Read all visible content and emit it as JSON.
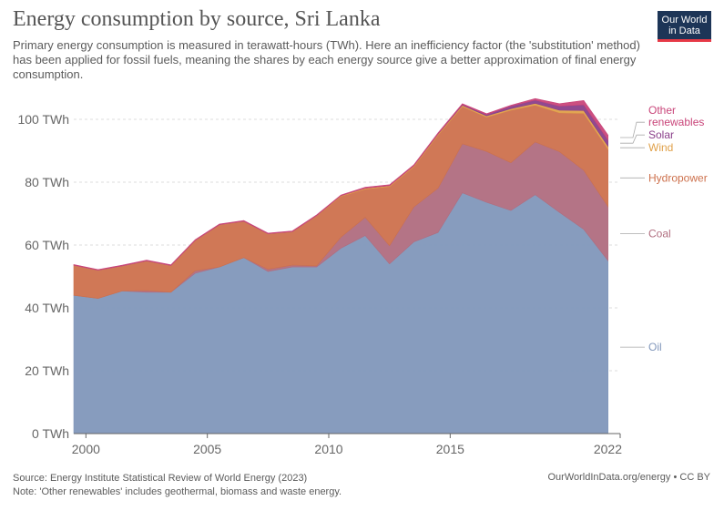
{
  "header": {
    "title": "Energy consumption by source, Sri Lanka",
    "subtitle": "Primary energy consumption is measured in terawatt-hours (TWh). Here an inefficiency factor (the 'substitution' method) has been applied for fossil fuels, meaning the shares by each energy source give a better approximation of final energy consumption.",
    "logo_line1": "Our World",
    "logo_line2": "in Data"
  },
  "footer": {
    "source": "Source: Energy Institute Statistical Review of World Energy (2023)",
    "note": "Note: 'Other renewables' includes geothermal, biomass and waste energy.",
    "credit": "OurWorldInData.org/energy • CC BY"
  },
  "colors": {
    "oil": "#8197bb",
    "coal": "#b06d7f",
    "hydropower": "#cd714d",
    "wind": "#e0a14a",
    "solar": "#8a3f8a",
    "other_renewables": "#c9467a",
    "grid": "#dddddd",
    "axis": "#666666",
    "label_text": "#666666"
  },
  "chart_data": {
    "type": "area",
    "stacked": true,
    "title": "Energy consumption by source, Sri Lanka",
    "ylabel": "TWh",
    "ylim": [
      0,
      100
    ],
    "xlim": [
      1999.5,
      2022
    ],
    "y_ticks": [
      {
        "value": 0,
        "label": "0 TWh"
      },
      {
        "value": 20,
        "label": "20 TWh"
      },
      {
        "value": 40,
        "label": "40 TWh"
      },
      {
        "value": 60,
        "label": "60 TWh"
      },
      {
        "value": 80,
        "label": "80 TWh"
      },
      {
        "value": 100,
        "label": "100 TWh"
      }
    ],
    "x_ticks": [
      {
        "value": 2000,
        "label": "2000"
      },
      {
        "value": 2005,
        "label": "2005"
      },
      {
        "value": 2010,
        "label": "2010"
      },
      {
        "value": 2015,
        "label": "2015"
      },
      {
        "value": 2022,
        "label": "2022"
      }
    ],
    "x": [
      1999.5,
      2000.5,
      2001.5,
      2002.5,
      2003.5,
      2004.5,
      2005.5,
      2006.5,
      2007.5,
      2008.5,
      2009.5,
      2010.5,
      2011.5,
      2012.5,
      2013.5,
      2014.5,
      2015.5,
      2016.5,
      2017.5,
      2018.5,
      2019.5,
      2020.5,
      2021.5
    ],
    "series": [
      {
        "key": "oil",
        "name": "Oil",
        "values": [
          44,
          43,
          45.4,
          45,
          45,
          51,
          53,
          56,
          51.6,
          53,
          53,
          59,
          63,
          54,
          61,
          64,
          76.6,
          73.6,
          71,
          76,
          70.4,
          65,
          55
        ]
      },
      {
        "key": "coal",
        "name": "Coal",
        "values": [
          0,
          0,
          0,
          0.5,
          0,
          0.8,
          0,
          0,
          0.7,
          0.6,
          0.4,
          3.5,
          5.8,
          5.8,
          11.1,
          14.1,
          15.6,
          16.2,
          15.2,
          16.8,
          19.3,
          18.8,
          17.2
        ]
      },
      {
        "key": "hydropower",
        "name": "Hydropower",
        "values": [
          9.6,
          9,
          8,
          9.5,
          8.5,
          9.7,
          13.5,
          11.6,
          11.3,
          10.7,
          15.9,
          13,
          9,
          18.8,
          12.8,
          16.9,
          11.9,
          10.9,
          16.7,
          11.7,
          12.4,
          18.1,
          18.3
        ]
      },
      {
        "key": "wind",
        "name": "Wind",
        "values": [
          0,
          0,
          0,
          0,
          0,
          0,
          0,
          0,
          0,
          0,
          0.1,
          0.2,
          0.3,
          0.3,
          0.3,
          0.3,
          0.4,
          0.4,
          0.5,
          0.6,
          0.8,
          0.9,
          0.9
        ]
      },
      {
        "key": "solar",
        "name": "Solar",
        "values": [
          0,
          0,
          0,
          0,
          0,
          0,
          0,
          0,
          0,
          0,
          0,
          0,
          0,
          0,
          0,
          0.1,
          0.2,
          0.4,
          0.8,
          1,
          1.3,
          1.8,
          2
        ]
      },
      {
        "key": "other_renewables",
        "name": "Other renewables",
        "values": [
          0.2,
          0.2,
          0.2,
          0.2,
          0.2,
          0.2,
          0.2,
          0.2,
          0.2,
          0.2,
          0.2,
          0.2,
          0.3,
          0.3,
          0.3,
          0.3,
          0.3,
          0.3,
          0.3,
          0.5,
          0.8,
          1.4,
          1.6
        ]
      }
    ],
    "legend_labels": [
      {
        "key": "other_renewables",
        "text": "Other renewables"
      },
      {
        "key": "solar",
        "text": "Solar"
      },
      {
        "key": "wind",
        "text": "Wind"
      },
      {
        "key": "hydropower",
        "text": "Hydropower"
      },
      {
        "key": "coal",
        "text": "Coal"
      },
      {
        "key": "oil",
        "text": "Oil"
      }
    ],
    "legend_placement": "right"
  }
}
